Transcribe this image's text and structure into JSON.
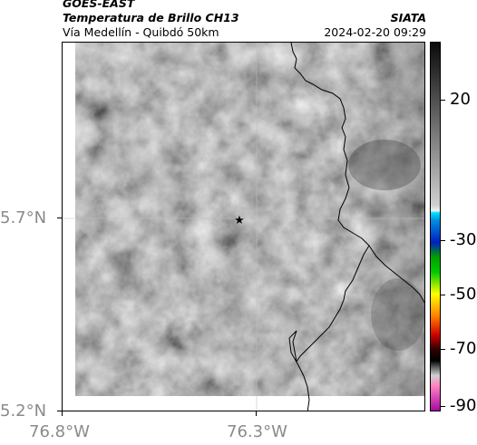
{
  "header": {
    "satellite": "GOES-EAST",
    "product": "Temperatura de Brillo CH13",
    "organization": "SIATA",
    "region": "Vía Medellín - Quibdó 50km",
    "timestamp": "2024-02-20 09:29"
  },
  "map": {
    "lat_ticks": [
      "5.7°N",
      "5.2°N"
    ],
    "lon_ticks": [
      "76.8°W",
      "76.3°W"
    ],
    "marker_icon": "star-icon",
    "grid_color": "#bfbfbf",
    "border_color": "#000000"
  },
  "colorbar": {
    "labels": [
      "20",
      "-30",
      "-50",
      "-70",
      "-90"
    ],
    "colors": {
      "top": "#0a0a0a",
      "mid_gray": "#9a9a9a",
      "light": "#f2f2f2",
      "cyan": "#00e5ff",
      "blue": "#0020c0",
      "green": "#00c800",
      "yellow": "#ffff00",
      "orange": "#ff8000",
      "red": "#d00000",
      "black": "#000000",
      "pink": "#ff80c0",
      "purple": "#a000a0"
    }
  }
}
